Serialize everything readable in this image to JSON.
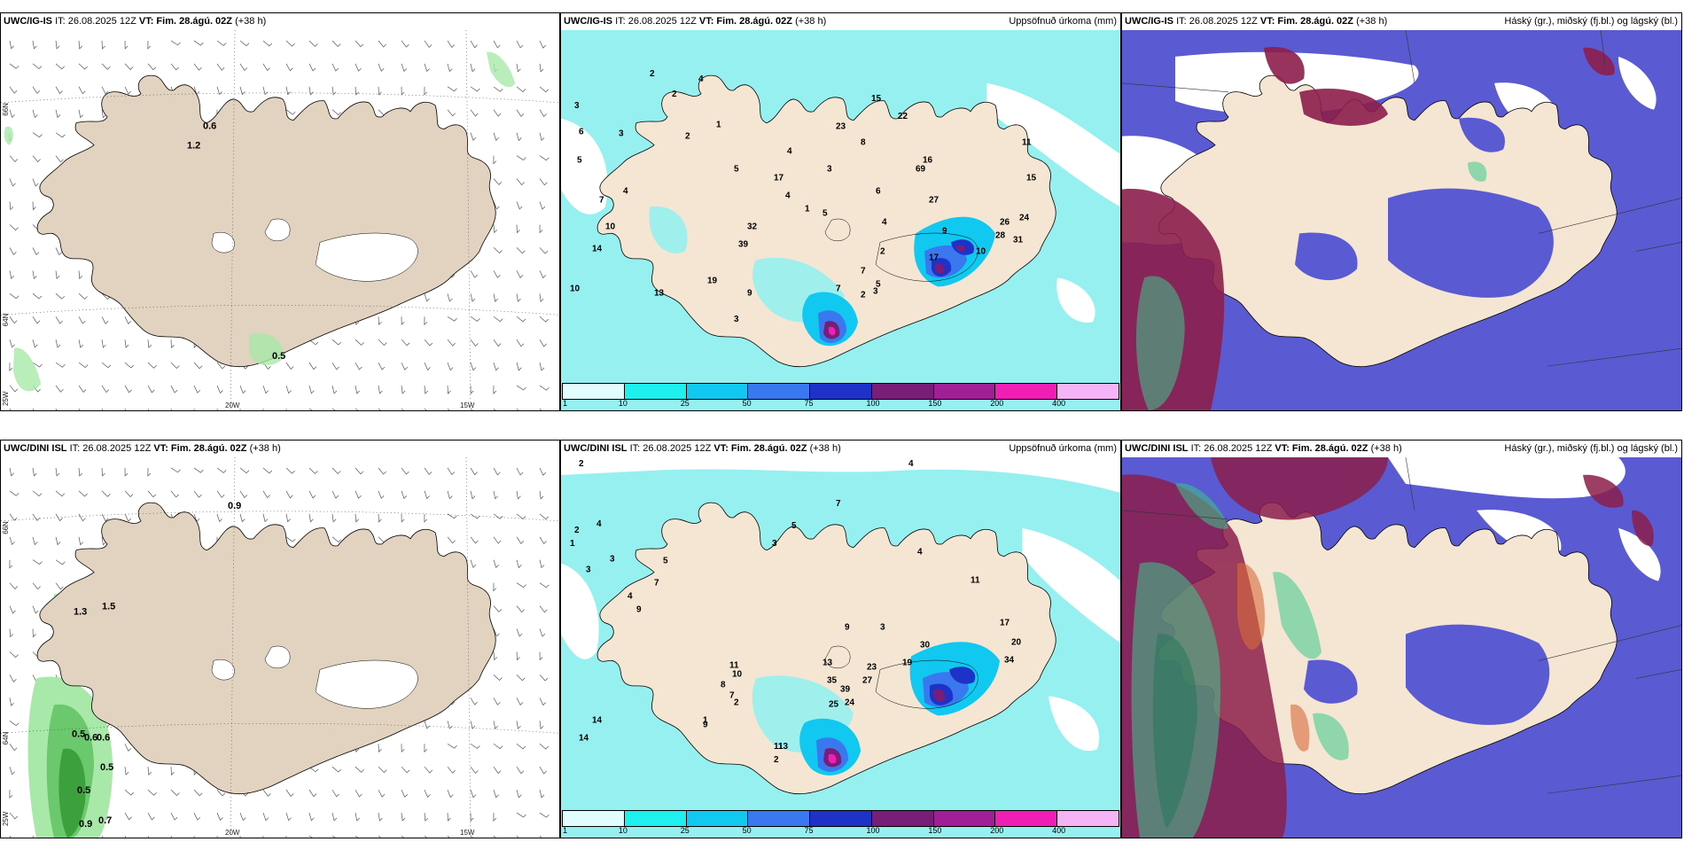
{
  "rows": [
    {
      "model": "UWC/IG-IS",
      "it_label": "IT: 26.08.2025 12Z",
      "vt_label": "VT:",
      "vt": "Fim. 28.ágú. 02Z",
      "lead": "(+38 h)",
      "wind_header_extra": "h)"
    },
    {
      "model": "UWC/DINI ISL",
      "it_label": "IT: 26.08.2025 12Z",
      "vt_label": "VT:",
      "vt": "Fim. 28.ágú. 02Z",
      "lead": "(+38 h)",
      "wind_header_extra": ""
    }
  ],
  "precip_title": "Uppsöfnuð úrkoma (mm)",
  "cloud_title": "Háský (gr.), miðský (fj.bl.) og lágský (bl.)",
  "axis_labels": {
    "lat66": "66N",
    "lat64": "64N",
    "lon25": "25W",
    "lon20": "20W",
    "lon15": "15W"
  },
  "precip_legend": {
    "ticks": [
      "1",
      "10",
      "25",
      "50",
      "75",
      "100",
      "150",
      "200",
      "400"
    ],
    "colors": [
      "#e1fdfd",
      "#1ef0f0",
      "#10c8f0",
      "#3a78f0",
      "#1e32c8",
      "#781e78",
      "#a01e96",
      "#f01eb4",
      "#f5b4f5"
    ]
  },
  "colors": {
    "land": "#f5e6d4",
    "land_wind": "#e2d2c0",
    "sea_precip": "#96f0f0",
    "low_cloud": "#5a5ad2",
    "mid_cloud": "#8c1e4b",
    "high_cloud": "#3cc88c"
  },
  "precip_values": {
    "top": [
      "2",
      "4",
      "2",
      "3",
      "6",
      "5",
      "3",
      "4",
      "7",
      "10",
      "14",
      "10",
      "13",
      "19",
      "9",
      "3",
      "2",
      "1",
      "5",
      "4",
      "3",
      "8",
      "6",
      "4",
      "2",
      "7",
      "5",
      "3",
      "2",
      "7",
      "9",
      "10",
      "11",
      "15",
      "24",
      "31",
      "26",
      "28",
      "27",
      "69",
      "17",
      "16",
      "22",
      "15",
      "23",
      "17",
      "32",
      "39",
      "4",
      "1",
      "5"
    ],
    "bottom": [
      "2",
      "2",
      "4",
      "1",
      "3",
      "3",
      "5",
      "4",
      "9",
      "7",
      "14",
      "14",
      "11",
      "10",
      "8",
      "7",
      "2",
      "1",
      "9",
      "11",
      "13",
      "2",
      "35",
      "39",
      "24",
      "25",
      "23",
      "27",
      "13",
      "19",
      "30",
      "34",
      "20",
      "17",
      "11",
      "4",
      "9",
      "3",
      "3",
      "5",
      "7",
      "4"
    ]
  },
  "wind_values": {
    "top": [
      "0.6",
      "1.2",
      "0.5"
    ],
    "bottom": [
      "0.9",
      "1.3",
      "1.5",
      "0.5",
      "0.6",
      "0.6",
      "0.5",
      "0.5",
      "0.9",
      "0.7"
    ]
  }
}
